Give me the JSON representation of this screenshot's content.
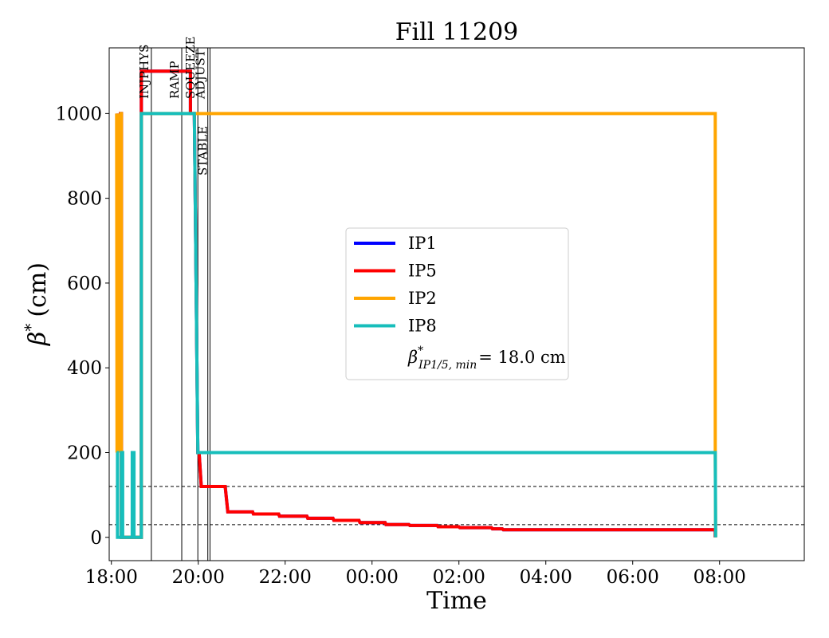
{
  "chart_data": {
    "type": "line",
    "title": "Fill 11209",
    "xlabel": "Time",
    "ylabel_symbol": "β",
    "ylabel_sup": "*",
    "ylabel_unit": "(cm)",
    "xlim": [
      17.95,
      33.95
    ],
    "ylim": [
      -55,
      1155
    ],
    "x_ticks": [
      {
        "value": 18,
        "label": "18:00"
      },
      {
        "value": 20,
        "label": "20:00"
      },
      {
        "value": 22,
        "label": "22:00"
      },
      {
        "value": 24,
        "label": "00:00"
      },
      {
        "value": 26,
        "label": "02:00"
      },
      {
        "value": 28,
        "label": "04:00"
      },
      {
        "value": 30,
        "label": "06:00"
      },
      {
        "value": 32,
        "label": "08:00"
      }
    ],
    "y_ticks": [
      {
        "value": 0,
        "label": "0"
      },
      {
        "value": 200,
        "label": "200"
      },
      {
        "value": 400,
        "label": "400"
      },
      {
        "value": 600,
        "label": "600"
      },
      {
        "value": 800,
        "label": "800"
      },
      {
        "value": 1000,
        "label": "1000"
      }
    ],
    "phases": [
      {
        "name": "INJPHYS",
        "x": 18.92
      },
      {
        "name": "RAMP",
        "x": 19.62
      },
      {
        "name": "SQUEEZE",
        "x": 19.99
      },
      {
        "name": "ADJUST",
        "x": 20.22
      },
      {
        "name": "STABLE",
        "x": 20.27
      }
    ],
    "hlines": [
      120,
      30
    ],
    "legend_position": "center",
    "series": [
      {
        "name": "IP1",
        "color": "#0000ff",
        "points": [
          [
            18.15,
            1000
          ],
          [
            18.15,
            200
          ],
          [
            18.17,
            1000
          ],
          [
            18.19,
            200
          ],
          [
            18.21,
            1000
          ],
          [
            18.23,
            1000
          ],
          [
            18.23,
            0
          ],
          [
            18.69,
            0
          ],
          [
            18.69,
            1100
          ],
          [
            19.82,
            1100
          ],
          [
            19.82,
            1000
          ],
          [
            19.91,
            1000
          ],
          [
            19.99,
            200
          ],
          [
            20.02,
            200
          ],
          [
            20.07,
            120
          ],
          [
            20.62,
            120
          ],
          [
            20.68,
            60
          ],
          [
            21.25,
            60
          ],
          [
            21.27,
            55
          ],
          [
            21.85,
            55
          ],
          [
            21.87,
            50
          ],
          [
            22.5,
            50
          ],
          [
            22.52,
            45
          ],
          [
            23.1,
            45
          ],
          [
            23.12,
            40
          ],
          [
            23.7,
            40
          ],
          [
            23.72,
            35
          ],
          [
            24.3,
            35
          ],
          [
            24.32,
            30
          ],
          [
            24.85,
            30
          ],
          [
            24.87,
            28
          ],
          [
            25.5,
            28
          ],
          [
            25.52,
            25
          ],
          [
            26.0,
            25
          ],
          [
            26.02,
            23
          ],
          [
            26.75,
            23
          ],
          [
            26.77,
            20
          ],
          [
            27.0,
            20
          ],
          [
            27.02,
            18
          ],
          [
            31.9,
            18
          ],
          [
            31.9,
            0
          ]
        ]
      },
      {
        "name": "IP5",
        "color": "#ff0000",
        "points": [
          [
            18.15,
            1000
          ],
          [
            18.15,
            200
          ],
          [
            18.17,
            1000
          ],
          [
            18.19,
            200
          ],
          [
            18.21,
            1000
          ],
          [
            18.23,
            1000
          ],
          [
            18.23,
            0
          ],
          [
            18.69,
            0
          ],
          [
            18.69,
            1100
          ],
          [
            19.82,
            1100
          ],
          [
            19.82,
            1000
          ],
          [
            19.91,
            1000
          ],
          [
            19.99,
            200
          ],
          [
            20.02,
            200
          ],
          [
            20.07,
            120
          ],
          [
            20.62,
            120
          ],
          [
            20.68,
            60
          ],
          [
            21.25,
            60
          ],
          [
            21.27,
            55
          ],
          [
            21.85,
            55
          ],
          [
            21.87,
            50
          ],
          [
            22.5,
            50
          ],
          [
            22.52,
            45
          ],
          [
            23.1,
            45
          ],
          [
            23.12,
            40
          ],
          [
            23.7,
            40
          ],
          [
            23.72,
            35
          ],
          [
            24.3,
            35
          ],
          [
            24.32,
            30
          ],
          [
            24.85,
            30
          ],
          [
            24.87,
            28
          ],
          [
            25.5,
            28
          ],
          [
            25.52,
            25
          ],
          [
            26.0,
            25
          ],
          [
            26.02,
            23
          ],
          [
            26.75,
            23
          ],
          [
            26.77,
            20
          ],
          [
            27.0,
            20
          ],
          [
            27.02,
            18
          ],
          [
            31.9,
            18
          ],
          [
            31.9,
            0
          ]
        ]
      },
      {
        "name": "IP2",
        "color": "#ffa500",
        "points": [
          [
            18.12,
            1000
          ],
          [
            18.13,
            200
          ],
          [
            18.14,
            1000
          ],
          [
            18.15,
            200
          ],
          [
            18.16,
            1000
          ],
          [
            18.17,
            200
          ],
          [
            18.18,
            1000
          ],
          [
            18.19,
            200
          ],
          [
            18.2,
            1000
          ],
          [
            18.21,
            200
          ],
          [
            18.22,
            1000
          ],
          [
            18.23,
            1000
          ],
          [
            18.23,
            0
          ],
          [
            18.69,
            0
          ],
          [
            18.69,
            1000
          ],
          [
            31.9,
            1000
          ],
          [
            31.9,
            200
          ],
          [
            31.91,
            0
          ]
        ]
      },
      {
        "name": "IP8",
        "color": "#17bebb",
        "points": [
          [
            18.12,
            200
          ],
          [
            18.14,
            200
          ],
          [
            18.14,
            0
          ],
          [
            18.23,
            0
          ],
          [
            18.23,
            200
          ],
          [
            18.26,
            200
          ],
          [
            18.26,
            0
          ],
          [
            18.48,
            0
          ],
          [
            18.48,
            200
          ],
          [
            18.52,
            200
          ],
          [
            18.52,
            0
          ],
          [
            18.69,
            0
          ],
          [
            18.69,
            1000
          ],
          [
            19.82,
            1000
          ],
          [
            19.91,
            1000
          ],
          [
            19.99,
            200
          ],
          [
            31.9,
            200
          ],
          [
            31.91,
            0
          ]
        ]
      }
    ],
    "legend": {
      "entries": [
        "IP1",
        "IP5",
        "IP2",
        "IP8"
      ],
      "annotation_symbol": "β",
      "annotation_sup": "*",
      "annotation_sub": "IP1/5, min",
      "annotation_value": "= 18.0 cm"
    }
  }
}
